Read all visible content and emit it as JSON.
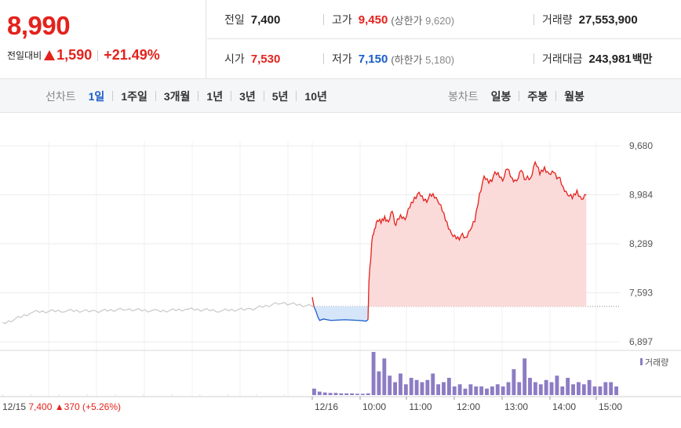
{
  "header": {
    "current_price": "8,990",
    "change_label": "전일대비",
    "change_value": "1,590",
    "change_pct": "+21.49%",
    "rows": [
      [
        {
          "label": "전일",
          "value": "7,400",
          "color": "normal"
        },
        {
          "label": "고가",
          "value": "9,450",
          "color": "red",
          "sub_label": "(상한가",
          "sub_value": "9,620)"
        },
        {
          "label": "거래량",
          "value": "27,553,900",
          "color": "normal"
        }
      ],
      [
        {
          "label": "시가",
          "value": "7,530",
          "color": "red"
        },
        {
          "label": "저가",
          "value": "7,150",
          "color": "blue",
          "sub_label": "(하한가",
          "sub_value": "5,180)"
        },
        {
          "label": "거래대금",
          "value": "243,981",
          "color": "normal",
          "unit": "백만"
        }
      ]
    ]
  },
  "tabs": {
    "line_chart": {
      "title": "선차트",
      "items": [
        "1일",
        "1주일",
        "3개월",
        "1년",
        "3년",
        "5년",
        "10년"
      ],
      "active": "1일"
    },
    "candle_chart": {
      "title": "봉차트",
      "items": [
        "일봉",
        "주봉",
        "월봉"
      ]
    }
  },
  "colors": {
    "up": "#e4221c",
    "down": "#1a5dc9",
    "prev_day": "#c8c8c8",
    "volume": "#8c7cc4",
    "up_fill": "#fbdada",
    "down_fill": "#d6e6fa"
  },
  "chart_data": {
    "type": "line",
    "y_ticks": [
      "9,680",
      "8,984",
      "8,289",
      "7,593",
      "6,897"
    ],
    "ylim": [
      6897,
      9680
    ],
    "prev_close": 7400,
    "x_ticks": [
      "12/16",
      "10:00",
      "11:00",
      "12:00",
      "13:00",
      "14:00",
      "15:00"
    ],
    "prev_day_label": {
      "date": "12/15",
      "price": "7,400",
      "change": "370",
      "pct": "(+5.26%)"
    },
    "volume_legend": "거래량",
    "prev_day": {
      "x": [
        0,
        10,
        20,
        30,
        40,
        50,
        60,
        70,
        80,
        90,
        100
      ],
      "y": [
        7150,
        7320,
        7340,
        7330,
        7360,
        7330,
        7360,
        7340,
        7360,
        7450,
        7400
      ]
    },
    "today": {
      "x": [
        0,
        2,
        4,
        6,
        8,
        12,
        20,
        35,
        50,
        58,
        60,
        61,
        64,
        67,
        70,
        74,
        78,
        82,
        86,
        90,
        95,
        100,
        105,
        110,
        115,
        120,
        125,
        130,
        135,
        140,
        145,
        150,
        155,
        160,
        165,
        170,
        175,
        180,
        185,
        190,
        195,
        200,
        205,
        210,
        215,
        220,
        225,
        230,
        235,
        240,
        245,
        250,
        255,
        260,
        265,
        270,
        275,
        280,
        285,
        290,
        295,
        300,
        305,
        310,
        315,
        320,
        325,
        330
      ],
      "y": [
        7530,
        7390,
        7330,
        7250,
        7200,
        7220,
        7200,
        7210,
        7200,
        7190,
        7210,
        7750,
        8300,
        8500,
        8620,
        8580,
        8680,
        8600,
        8750,
        8550,
        8700,
        8630,
        8800,
        8950,
        9020,
        8900,
        8930,
        9000,
        8900,
        8750,
        8600,
        8430,
        8360,
        8400,
        8380,
        8480,
        8600,
        9000,
        9250,
        9150,
        9250,
        9300,
        9180,
        9350,
        9230,
        9180,
        9330,
        9200,
        9220,
        9450,
        9270,
        9380,
        9280,
        9300,
        9230,
        9100,
        8980,
        8930,
        9050,
        8920,
        8980,
        8990,
        8990,
        8990,
        8990,
        8990,
        8990,
        8990
      ]
    },
    "today_end_index": 60,
    "volume": {
      "prev_day": [
        0.1,
        0.1,
        0.1,
        0.1,
        0.1,
        0.1,
        0.1,
        0.1,
        0.1,
        0.1,
        0.1
      ],
      "today": [
        0.15,
        0.08,
        0.06,
        0.05,
        0.05,
        0.04,
        0.04,
        0.04,
        0.03,
        0.03,
        0.04,
        1.0,
        0.55,
        0.85,
        0.45,
        0.3,
        0.5,
        0.25,
        0.4,
        0.35,
        0.3,
        0.35,
        0.5,
        0.25,
        0.3,
        0.4,
        0.2,
        0.25,
        0.15,
        0.25,
        0.2,
        0.2,
        0.15,
        0.2,
        0.25,
        0.2,
        0.3,
        0.6,
        0.3,
        0.85,
        0.4,
        0.3,
        0.25,
        0.35,
        0.3,
        0.45,
        0.2,
        0.4,
        0.25,
        0.3,
        0.25,
        0.35,
        0.2,
        0.2,
        0.3,
        0.3,
        0.2
      ]
    }
  }
}
